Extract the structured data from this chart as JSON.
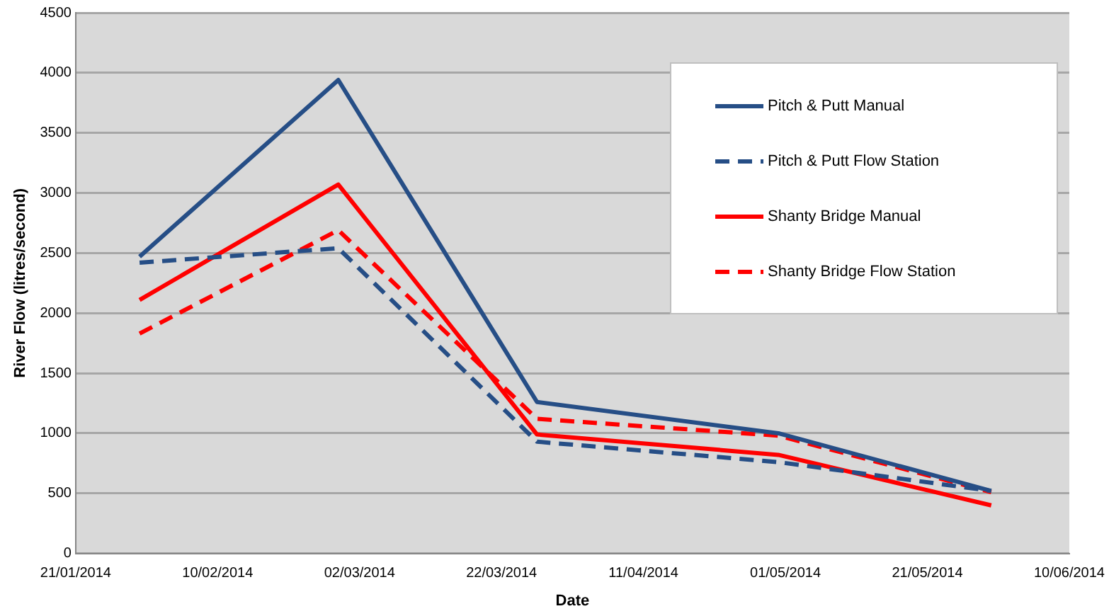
{
  "chart_data": {
    "type": "line",
    "xlabel": "Date",
    "ylabel": "River Flow (litres/second)",
    "x": [
      "2014-01-30",
      "2014-02-27",
      "2014-03-27",
      "2014-04-30",
      "2014-05-30"
    ],
    "series": [
      {
        "name": "Pitch & Putt Manual",
        "color": "#264e86",
        "line_style": "solid",
        "values": [
          2470,
          3940,
          1260,
          1000,
          520
        ]
      },
      {
        "name": "Pitch & Putt Flow Station",
        "color": "#264e86",
        "line_style": "dashed",
        "values": [
          2420,
          2540,
          930,
          760,
          520
        ]
      },
      {
        "name": "Shanty Bridge Manual",
        "color": "#ff0000",
        "line_style": "solid",
        "values": [
          2110,
          3070,
          990,
          820,
          400
        ]
      },
      {
        "name": "Shanty Bridge Flow Station",
        "color": "#ff0000",
        "line_style": "dashed",
        "values": [
          1830,
          2690,
          1120,
          980,
          510
        ]
      }
    ],
    "xlim": [
      "2014-01-21",
      "2014-06-10"
    ],
    "xticks": [
      {
        "value": "2014-01-21",
        "label": "21/01/2014"
      },
      {
        "value": "2014-02-10",
        "label": "10/02/2014"
      },
      {
        "value": "2014-03-02",
        "label": "02/03/2014"
      },
      {
        "value": "2014-03-22",
        "label": "22/03/2014"
      },
      {
        "value": "2014-04-11",
        "label": "11/04/2014"
      },
      {
        "value": "2014-05-01",
        "label": "01/05/2014"
      },
      {
        "value": "2014-05-21",
        "label": "21/05/2014"
      },
      {
        "value": "2014-06-10",
        "label": "10/06/2014"
      }
    ],
    "ylim": [
      0,
      4500
    ],
    "yticks": [
      0,
      500,
      1000,
      1500,
      2000,
      2500,
      3000,
      3500,
      4000,
      4500
    ],
    "grid": "y",
    "legend": "top right",
    "marker": "none"
  }
}
